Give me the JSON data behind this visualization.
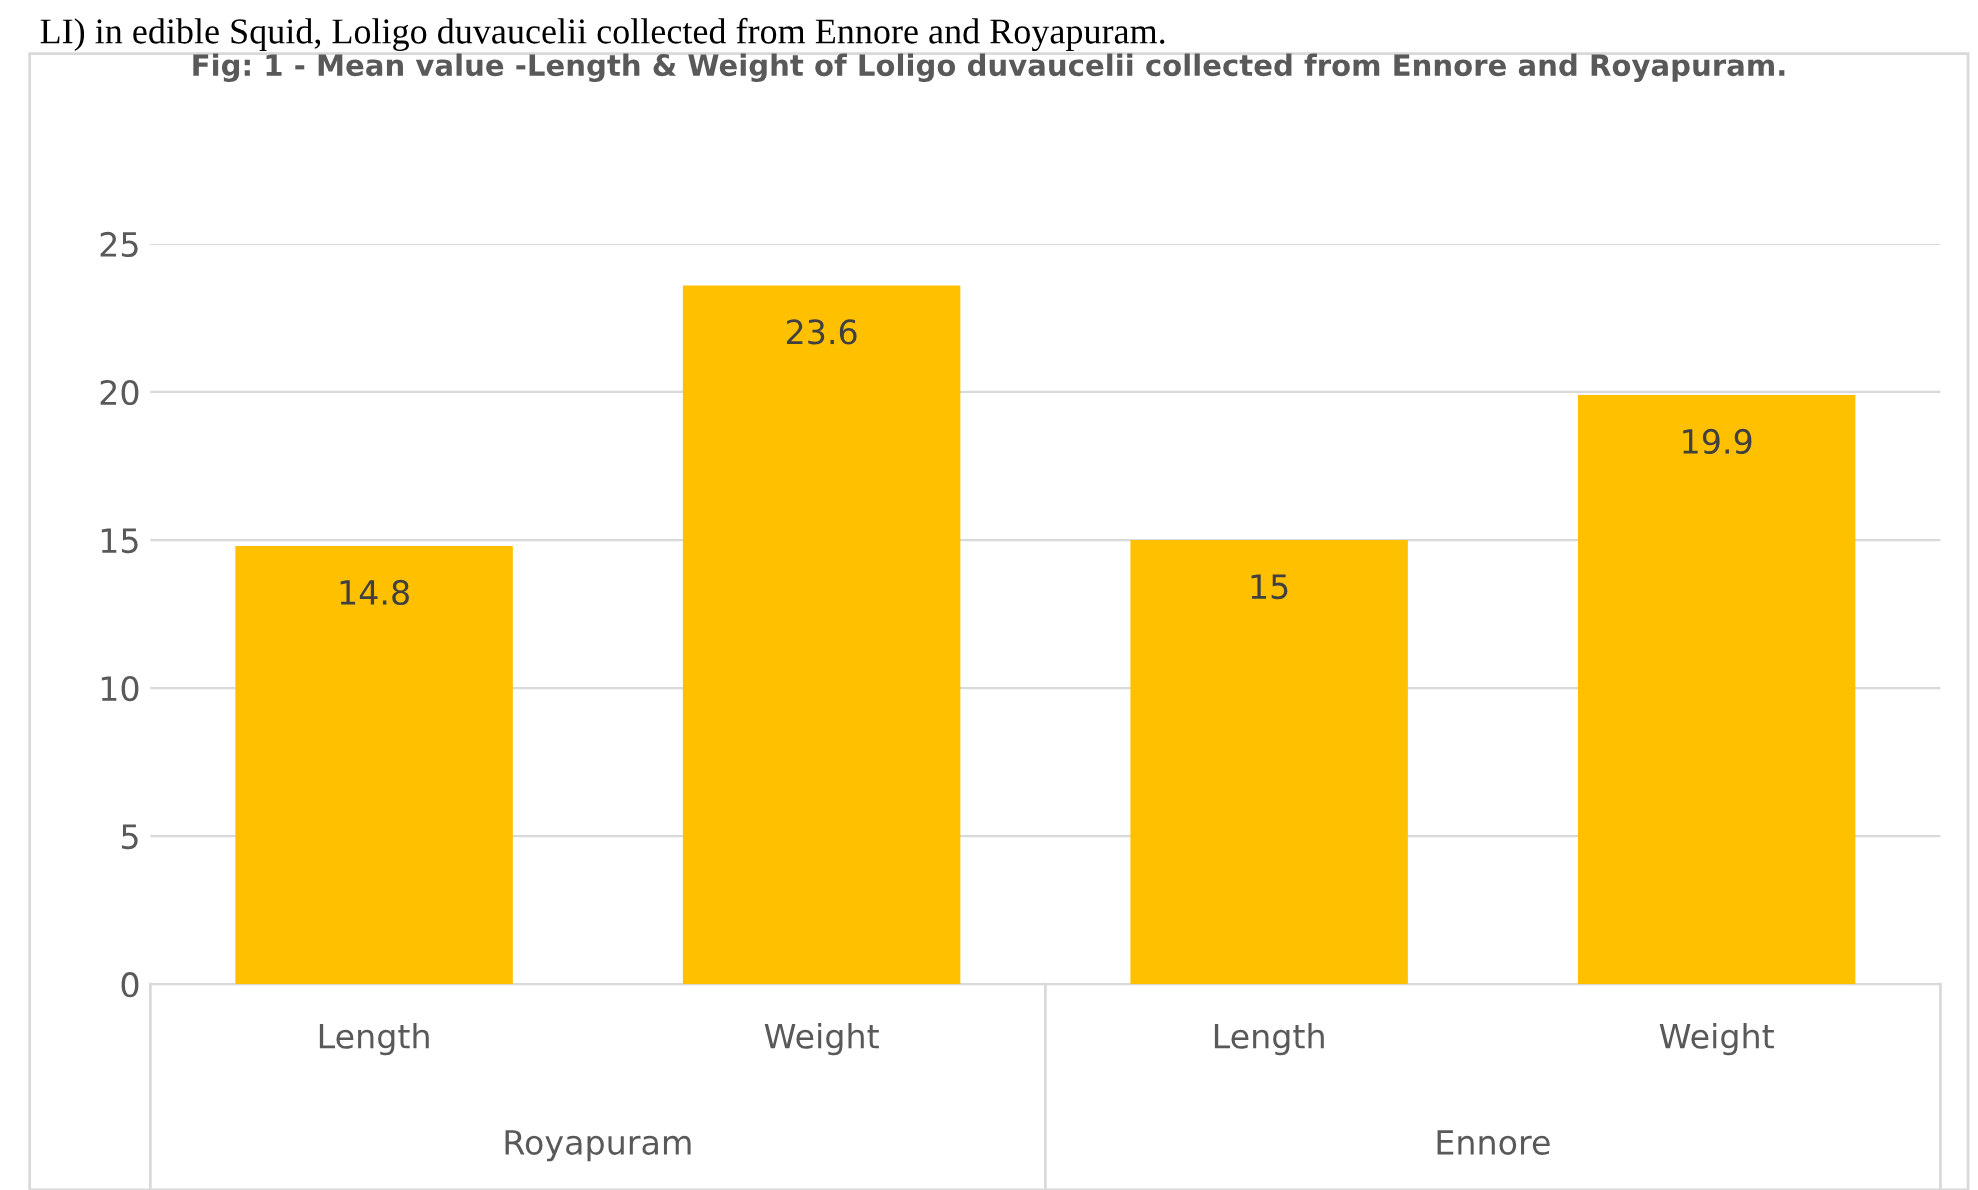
{
  "chart_data": {
    "type": "bar",
    "title": "Fig: 1 - Mean value -Length & Weight of Loligo duvaucelii collected from Ennore and Royapuram.",
    "categories": [
      "Length",
      "Weight",
      "Length",
      "Weight"
    ],
    "values": [
      14.8,
      23.6,
      15,
      19.9
    ],
    "color": "#ffc000",
    "ylim": [
      0,
      25
    ],
    "yticks": [
      0,
      5,
      10,
      15,
      20,
      25
    ],
    "grid": "y",
    "data_labels": true,
    "legend": false,
    "annotations": [
      "LI) in edible Squid, Loligo duvaucelii collected from Ennore and Royapuram.",
      "Royapuram",
      "Ennore"
    ]
  }
}
